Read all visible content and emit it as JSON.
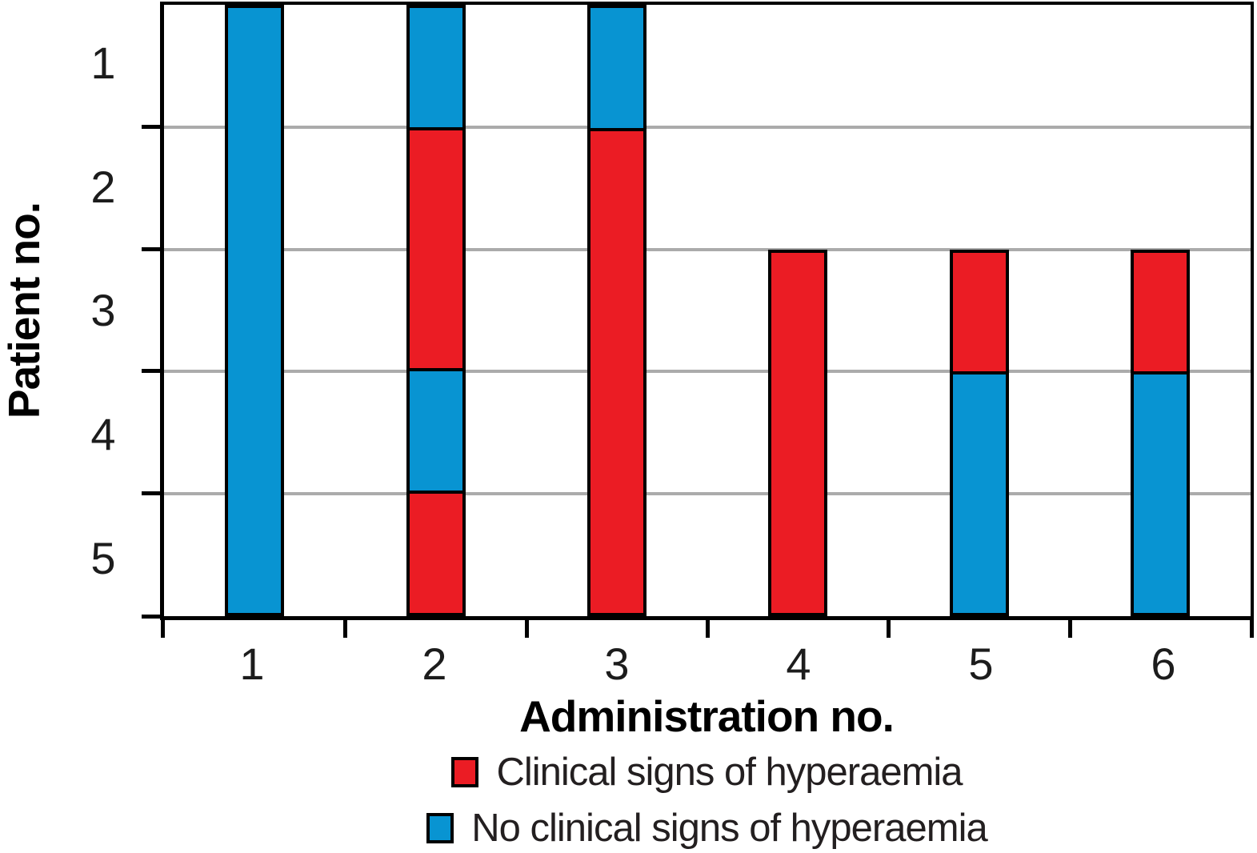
{
  "chart_data": {
    "type": "bar",
    "subtype": "stacked-status-columns (each bar spans patient bands on a categorical y axis, top-to-bottom)",
    "title": "",
    "xlabel": "Administration no.",
    "ylabel": "Patient no.",
    "x_categories": [
      "1",
      "2",
      "3",
      "4",
      "5",
      "6"
    ],
    "y_categories": [
      "1",
      "2",
      "3",
      "4",
      "5"
    ],
    "y_axis_direction": "top-to-bottom",
    "grid": "horizontal gridlines at patient band boundaries",
    "legend_position": "below x axis title, centered",
    "colors": {
      "signs": "#EB1C24",
      "no_signs": "#0894D2",
      "gridline": "#ABABAB",
      "axis": "#000000"
    },
    "legend": [
      {
        "key": "signs",
        "label": "Clinical signs of hyperaemia",
        "color": "#EB1C24"
      },
      {
        "key": "no_signs",
        "label": "No clinical signs of hyperaemia",
        "color": "#0894D2"
      }
    ],
    "bars": [
      {
        "administration": "1",
        "segments": [
          {
            "status": "no_signs",
            "patients": [
              1,
              2,
              3,
              4,
              5
            ]
          }
        ]
      },
      {
        "administration": "2",
        "segments": [
          {
            "status": "no_signs",
            "patients": [
              1
            ]
          },
          {
            "status": "signs",
            "patients": [
              2,
              3
            ]
          },
          {
            "status": "no_signs",
            "patients": [
              4
            ]
          },
          {
            "status": "signs",
            "patients": [
              5
            ]
          }
        ]
      },
      {
        "administration": "3",
        "segments": [
          {
            "status": "no_signs",
            "patients": [
              1
            ]
          },
          {
            "status": "signs",
            "patients": [
              2,
              3,
              4,
              5
            ]
          }
        ]
      },
      {
        "administration": "4",
        "segments": [
          {
            "status": "signs",
            "patients": [
              3,
              4,
              5
            ]
          }
        ]
      },
      {
        "administration": "5",
        "segments": [
          {
            "status": "signs",
            "patients": [
              3
            ]
          },
          {
            "status": "no_signs",
            "patients": [
              4,
              5
            ]
          }
        ]
      },
      {
        "administration": "6",
        "segments": [
          {
            "status": "signs",
            "patients": [
              3
            ]
          },
          {
            "status": "no_signs",
            "patients": [
              4,
              5
            ]
          }
        ]
      }
    ]
  }
}
